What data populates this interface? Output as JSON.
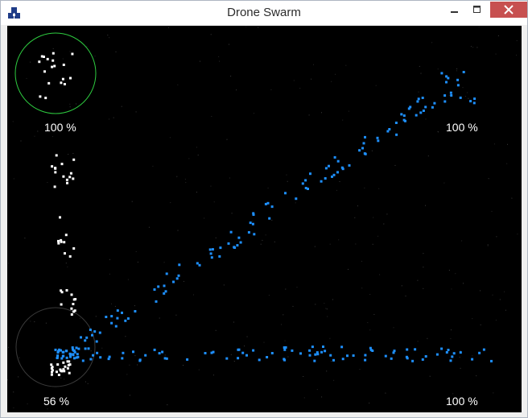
{
  "window": {
    "title": "Drone Swarm",
    "controls": [
      "minimize-icon",
      "maximize-icon",
      "close-icon"
    ]
  },
  "colors": {
    "background": "#000000",
    "friendly_drone": "#ffffff",
    "enemy_drone": "#1e90ff",
    "active_ring": "#2ecc40",
    "inactive_ring": "#3a3a3a",
    "close_button": "#c75050"
  },
  "hud": {
    "top_left_percent": "100 %",
    "top_right_percent": "100 %",
    "bottom_left_percent": "56 %",
    "bottom_right_percent": "100 %"
  }
}
